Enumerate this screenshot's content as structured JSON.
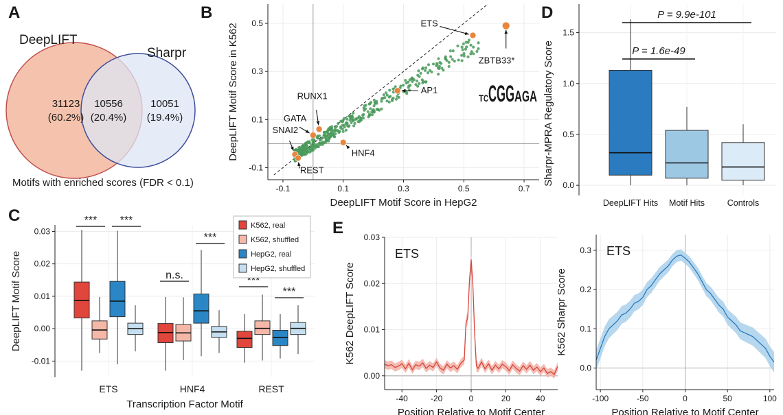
{
  "panels": {
    "A": {
      "letter": "A"
    },
    "B": {
      "letter": "B"
    },
    "C": {
      "letter": "C"
    },
    "D": {
      "letter": "D"
    },
    "E": {
      "letter": "E"
    }
  },
  "chart_data": [
    {
      "panel": "A",
      "type": "venn",
      "sets": [
        {
          "name": "DeepLIFT",
          "color": "#f5c3ad",
          "edge": "#c0504d"
        },
        {
          "name": "Sharpr",
          "color": "#dce5f4",
          "edge": "#3f4f9a"
        }
      ],
      "regions": [
        {
          "count": "31123",
          "pct": "(60.2%)"
        },
        {
          "count": "10556",
          "pct": "(20.4%)"
        },
        {
          "count": "10051",
          "pct": "(19.4%)"
        }
      ],
      "caption": "Motifs with enriched scores (FDR < 0.1)"
    },
    {
      "panel": "B",
      "type": "scatter",
      "xlabel": "DeepLIFT Motif Score in HepG2",
      "ylabel": "DeepLIFT Motif Score in K562",
      "xlim": [
        -0.15,
        0.75
      ],
      "ylim": [
        -0.15,
        0.58
      ],
      "xticks": [
        -0.1,
        0.1,
        0.3,
        0.5,
        0.7
      ],
      "yticks": [
        -0.1,
        0.1,
        0.3,
        0.5
      ],
      "point_color": "#4a9a5c",
      "highlight_color": "#e8863e",
      "logo_label": "ZBTB33*",
      "highlights": [
        {
          "label": "ETS",
          "x": 0.53,
          "y": 0.45
        },
        {
          "label": "ZBTB33*",
          "x": 0.64,
          "y": 0.49
        },
        {
          "label": "AP1",
          "x": 0.28,
          "y": 0.22
        },
        {
          "label": "RUNX1",
          "x": 0.02,
          "y": 0.06
        },
        {
          "label": "GATA",
          "x": 0.0,
          "y": 0.035
        },
        {
          "label": "SNAI2",
          "x": -0.06,
          "y": -0.045
        },
        {
          "label": "REST",
          "x": -0.05,
          "y": -0.06
        },
        {
          "label": "HNF4",
          "x": 0.1,
          "y": 0.005
        }
      ]
    },
    {
      "panel": "C",
      "type": "box",
      "xlabel": "Transcription Factor Motif",
      "ylabel": "DeepLIFT Motif Score",
      "ylim": [
        -0.015,
        0.032
      ],
      "yticks": [
        -0.01,
        0.0,
        0.01,
        0.02,
        0.03
      ],
      "ytick_labels": [
        "-0.01",
        "0.00",
        "0.01",
        "0.02",
        "0.03"
      ],
      "categories": [
        "ETS",
        "HNF4",
        "REST"
      ],
      "series": [
        {
          "name": "K562, real",
          "color": "#e0463b"
        },
        {
          "name": "K562, shuffled",
          "color": "#f5b8a8"
        },
        {
          "name": "HepG2, real",
          "color": "#2a86c4"
        },
        {
          "name": "HepG2, shuffled",
          "color": "#c5dff0"
        }
      ],
      "boxes": [
        {
          "cat": 0,
          "s": 0,
          "lo": -0.013,
          "q1": 0.0033,
          "med": 0.0087,
          "q3": 0.0144,
          "hi": 0.0305
        },
        {
          "cat": 0,
          "s": 1,
          "lo": -0.0075,
          "q1": -0.0032,
          "med": -0.0004,
          "q3": 0.0024,
          "hi": 0.0098
        },
        {
          "cat": 0,
          "s": 2,
          "lo": -0.011,
          "q1": 0.0037,
          "med": 0.0085,
          "q3": 0.0146,
          "hi": 0.0302
        },
        {
          "cat": 0,
          "s": 3,
          "lo": -0.007,
          "q1": -0.0018,
          "med": 0.0,
          "q3": 0.0017,
          "hi": 0.0072
        },
        {
          "cat": 1,
          "s": 0,
          "lo": -0.013,
          "q1": -0.0043,
          "med": -0.0012,
          "q3": 0.0016,
          "hi": 0.0098
        },
        {
          "cat": 1,
          "s": 1,
          "lo": -0.0097,
          "q1": -0.0038,
          "med": -0.0013,
          "q3": 0.0013,
          "hi": 0.0097
        },
        {
          "cat": 1,
          "s": 2,
          "lo": -0.0085,
          "q1": 0.0017,
          "med": 0.0055,
          "q3": 0.0107,
          "hi": 0.0243
        },
        {
          "cat": 1,
          "s": 3,
          "lo": -0.0075,
          "q1": -0.0027,
          "med": -0.001,
          "q3": 0.0007,
          "hi": 0.0057
        },
        {
          "cat": 2,
          "s": 0,
          "lo": -0.0105,
          "q1": -0.0058,
          "med": -0.003,
          "q3": -0.0008,
          "hi": 0.0045
        },
        {
          "cat": 2,
          "s": 1,
          "lo": -0.0098,
          "q1": -0.0018,
          "med": 0.0001,
          "q3": 0.0024,
          "hi": 0.0105
        },
        {
          "cat": 2,
          "s": 2,
          "lo": -0.0092,
          "q1": -0.0052,
          "med": -0.0027,
          "q3": -0.0005,
          "hi": 0.0045
        },
        {
          "cat": 2,
          "s": 3,
          "lo": -0.0078,
          "q1": -0.0018,
          "med": 0.0001,
          "q3": 0.0019,
          "hi": 0.0072
        }
      ],
      "significance": [
        {
          "cat": 0,
          "pair": "K562",
          "label": "***"
        },
        {
          "cat": 0,
          "pair": "HepG2",
          "label": "***"
        },
        {
          "cat": 1,
          "pair": "K562",
          "label": "n.s."
        },
        {
          "cat": 1,
          "pair": "HepG2",
          "label": "***"
        },
        {
          "cat": 2,
          "pair": "K562",
          "label": "***"
        },
        {
          "cat": 2,
          "pair": "HepG2",
          "label": "***"
        }
      ],
      "legend_position": "top-right"
    },
    {
      "panel": "D",
      "type": "box",
      "ylabel": "Sharpr-MPRA Regulatory Score",
      "ylim": [
        -0.1,
        1.78
      ],
      "yticks": [
        0.0,
        0.5,
        1.0,
        1.5
      ],
      "ytick_labels": [
        "0.0",
        "0.5",
        "1.0",
        "1.5"
      ],
      "categories": [
        "DeepLIFT Hits",
        "Motif Hits",
        "Controls"
      ],
      "colors": [
        "#2a7bbf",
        "#9cc8e4",
        "#dcebf8"
      ],
      "boxes": [
        {
          "lo": 0.0,
          "q1": 0.1,
          "med": 0.32,
          "q3": 1.13,
          "hi": 1.63
        },
        {
          "lo": 0.0,
          "q1": 0.07,
          "med": 0.22,
          "q3": 0.54,
          "hi": 0.77
        },
        {
          "lo": 0.0,
          "q1": 0.05,
          "med": 0.18,
          "q3": 0.42,
          "hi": 0.6
        }
      ],
      "brackets": [
        {
          "from": 0,
          "to": 2,
          "label": "P = 9.9e-101"
        },
        {
          "from": 0,
          "to": 1,
          "label": "P = 1.6e-49"
        }
      ]
    },
    {
      "panel": "E1",
      "type": "line",
      "title": "ETS",
      "xlabel": "Position Relative to Motif Center",
      "ylabel": "K562 DeepLIFT Score",
      "xlim": [
        -50,
        50
      ],
      "ylim": [
        -0.003,
        0.03
      ],
      "xticks": [
        -40,
        -20,
        0,
        20,
        40
      ],
      "yticks": [
        0.0,
        0.01,
        0.02,
        0.03
      ],
      "ytick_labels": [
        "0.00",
        "0.01",
        "0.02",
        "0.03"
      ],
      "color": "#d6453a",
      "band_color": "#f2b0a6",
      "x": [
        -50,
        -48,
        -46,
        -44,
        -42,
        -40,
        -38,
        -36,
        -34,
        -32,
        -30,
        -28,
        -26,
        -24,
        -22,
        -20,
        -18,
        -16,
        -14,
        -12,
        -10,
        -8,
        -6,
        -4,
        -3,
        -2,
        -1,
        0,
        1,
        2,
        3,
        4,
        6,
        8,
        10,
        12,
        14,
        16,
        18,
        20,
        22,
        24,
        26,
        28,
        30,
        32,
        34,
        36,
        38,
        40,
        42,
        44,
        46,
        48,
        50
      ],
      "y": [
        0.0025,
        0.0022,
        0.0024,
        0.0018,
        0.0021,
        0.0026,
        0.0015,
        0.0027,
        0.0013,
        0.0024,
        0.0021,
        0.0028,
        0.0016,
        0.0023,
        0.0018,
        0.003,
        0.0017,
        0.0012,
        0.0025,
        0.0017,
        0.0022,
        0.0014,
        0.0027,
        0.0034,
        0.0115,
        0.0125,
        0.0205,
        0.0252,
        0.0195,
        0.0092,
        0.0022,
        0.0016,
        0.003,
        0.0015,
        0.0026,
        0.0012,
        0.0023,
        0.0015,
        0.0025,
        0.002,
        0.0011,
        0.0024,
        0.0016,
        0.001,
        0.0022,
        0.0014,
        0.0023,
        0.0012,
        0.0019,
        0.0009,
        0.0017,
        0.0005,
        0.0009,
        0.0003,
        0.002
      ]
    },
    {
      "panel": "E2",
      "type": "line",
      "title": "ETS",
      "xlabel": "Position Relative to Motif Center",
      "ylabel": "K562 Sharpr Score",
      "xlim": [
        -105,
        105
      ],
      "ylim": [
        -0.055,
        0.34
      ],
      "xticks": [
        -100,
        -50,
        0,
        50,
        100
      ],
      "yticks": [
        0.0,
        0.1,
        0.2,
        0.3
      ],
      "ytick_labels": [
        "0.0",
        "0.1",
        "0.2",
        "0.3"
      ],
      "color": "#2a7bbf",
      "band_color": "#a9d0ea",
      "x": [
        -105,
        -100,
        -95,
        -90,
        -85,
        -80,
        -75,
        -70,
        -65,
        -60,
        -55,
        -50,
        -45,
        -40,
        -35,
        -30,
        -25,
        -20,
        -15,
        -10,
        -5,
        0,
        5,
        10,
        15,
        20,
        25,
        30,
        35,
        40,
        45,
        50,
        55,
        60,
        65,
        70,
        75,
        80,
        85,
        90,
        95,
        100,
        105
      ],
      "y": [
        0.02,
        0.05,
        0.08,
        0.1,
        0.11,
        0.12,
        0.135,
        0.14,
        0.15,
        0.165,
        0.17,
        0.18,
        0.2,
        0.21,
        0.225,
        0.24,
        0.25,
        0.26,
        0.275,
        0.285,
        0.288,
        0.28,
        0.27,
        0.255,
        0.24,
        0.22,
        0.2,
        0.19,
        0.175,
        0.16,
        0.15,
        0.13,
        0.12,
        0.11,
        0.095,
        0.09,
        0.085,
        0.08,
        0.07,
        0.06,
        0.05,
        0.03,
        0.015
      ]
    }
  ]
}
